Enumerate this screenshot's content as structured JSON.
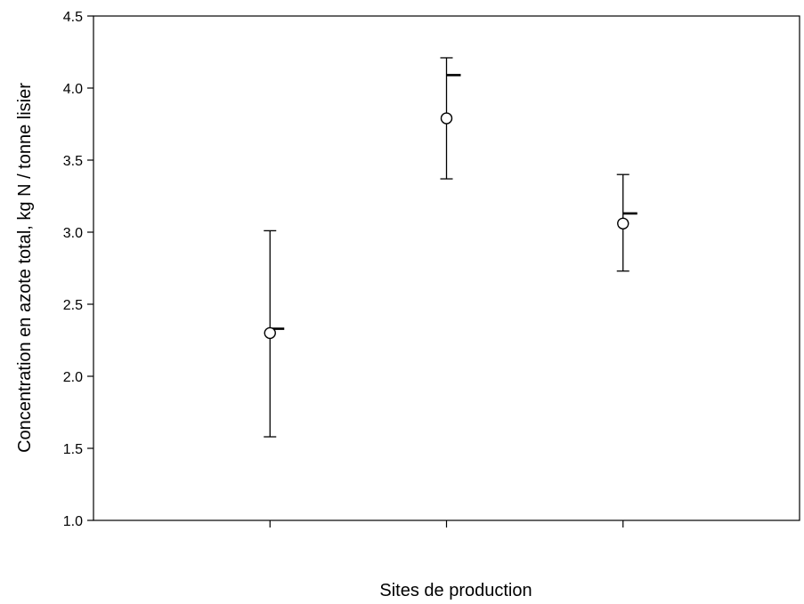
{
  "chart_data": {
    "type": "scatter",
    "title": "",
    "xlabel": "Sites de production",
    "ylabel": "Concentration en azote total, kg N / tonne lisier",
    "xlim": [
      0,
      4
    ],
    "ylim": [
      1.0,
      4.5
    ],
    "yticks": [
      1.0,
      1.5,
      2.0,
      2.5,
      3.0,
      3.5,
      4.0,
      4.5
    ],
    "ytick_labels": [
      "1.0",
      "1.5",
      "2.0",
      "2.5",
      "3.0",
      "3.5",
      "4.0",
      "4.5"
    ],
    "xticks": [
      1,
      2,
      3
    ],
    "grid": false,
    "series": [
      {
        "marker": "open-circle",
        "points": [
          {
            "x": 1,
            "y": 2.3,
            "err_low": 1.58,
            "err_high": 3.01,
            "dash": 2.33
          },
          {
            "x": 2,
            "y": 3.79,
            "err_low": 3.37,
            "err_high": 4.21,
            "dash": 4.09
          },
          {
            "x": 3,
            "y": 3.06,
            "err_low": 2.73,
            "err_high": 3.4,
            "dash": 3.13
          }
        ]
      }
    ]
  }
}
